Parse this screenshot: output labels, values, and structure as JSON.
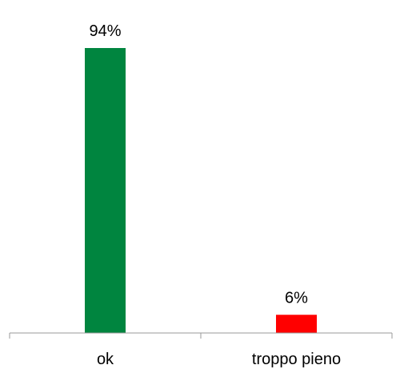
{
  "chart_data": {
    "type": "bar",
    "categories": [
      "ok",
      "troppo pieno"
    ],
    "values": [
      94,
      6
    ],
    "data_labels": [
      "94%",
      "6%"
    ],
    "colors": [
      "#00853F",
      "#FF0000"
    ],
    "ylim": [
      0,
      100
    ],
    "grid": false,
    "legend": "none"
  }
}
